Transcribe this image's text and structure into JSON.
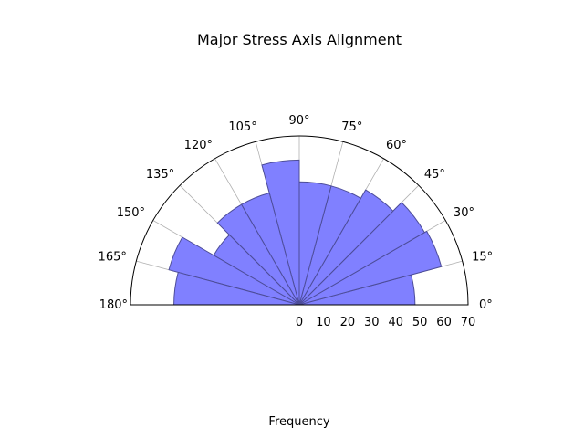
{
  "chart_data": {
    "type": "bar",
    "subtype": "polar-half-rose",
    "title": "Major Stress Axis Alignment",
    "xlabel": "Frequency",
    "ylabel": "",
    "theta_unit": "degrees",
    "theta_range": [
      0,
      180
    ],
    "bin_width_deg": 15,
    "categories": [
      "0-15",
      "15-30",
      "30-45",
      "45-60",
      "60-75",
      "75-90",
      "90-105",
      "105-120",
      "120-135",
      "135-150",
      "150-165",
      "165-180"
    ],
    "values": [
      48,
      61,
      60,
      55,
      51,
      51,
      60,
      48,
      48,
      41,
      56,
      52
    ],
    "r_max": 70,
    "r_ticks": [
      0,
      10,
      20,
      30,
      40,
      50,
      60,
      70
    ],
    "angle_ticks": [
      0,
      15,
      30,
      45,
      60,
      75,
      90,
      105,
      120,
      135,
      150,
      165,
      180
    ],
    "angle_tick_suffix": "°",
    "bar_color": "#8080ff",
    "bar_edge_color": "#4d4d99",
    "grid": true,
    "grid_color": "#b0b0b0",
    "legend": false
  }
}
